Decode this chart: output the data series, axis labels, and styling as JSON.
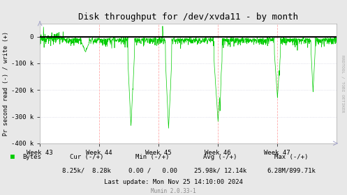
{
  "title": "Disk throughput for /dev/xvda11 - by month",
  "ylabel": "Pr second read (-) / write (+)",
  "xlabel_ticks": [
    "Week 43",
    "Week 44",
    "Week 45",
    "Week 46",
    "Week 47"
  ],
  "ylim": [
    -400000,
    50000
  ],
  "yticks": [
    0,
    -100000,
    -200000,
    -300000,
    -400000
  ],
  "ytick_labels": [
    "0",
    "-100 k",
    "-200 k",
    "-300 k",
    "-400 k"
  ],
  "bg_color": "#e8e8e8",
  "plot_bg_color": "#ffffff",
  "line_color": "#00cc00",
  "zero_line_color": "#000000",
  "watermark": "RRDTOOL / TOBI OETIKER",
  "legend_label": "Bytes",
  "legend_color": "#00cc00",
  "footer_cur": "Cur (-/+)",
  "footer_cur_val": "8.25k/  8.28k",
  "footer_min": "Min (-/+)",
  "footer_min_val": "0.00 /   0.00",
  "footer_avg": "Avg (-/+)",
  "footer_avg_val": "25.98k/ 12.14k",
  "footer_max": "Max (-/+)",
  "footer_max_val": "6.28M/899.71k",
  "footer_last_update": "Last update: Mon Nov 25 14:10:00 2024",
  "footer_munin": "Munin 2.0.33-1",
  "n_points": 1500,
  "seed": 42
}
